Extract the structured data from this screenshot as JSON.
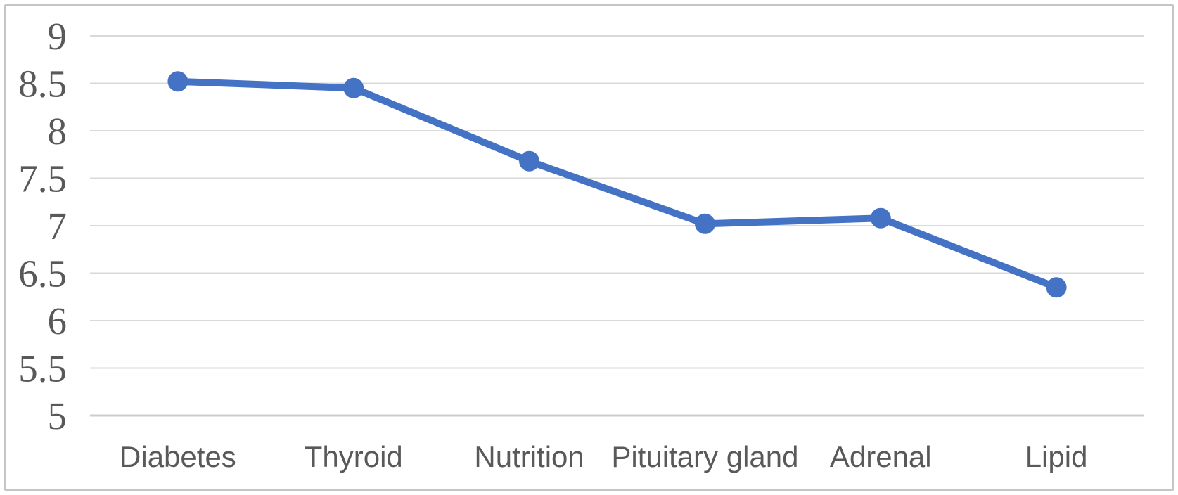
{
  "chart_data": {
    "type": "line",
    "categories": [
      "Diabetes",
      "Thyroid",
      "Nutrition",
      "Pituitary gland",
      "Adrenal",
      "Lipid"
    ],
    "values": [
      8.52,
      8.45,
      7.68,
      7.02,
      7.08,
      6.35
    ],
    "ylim": [
      5,
      9
    ],
    "ytick_step": 0.5,
    "ytick_labels": [
      "9",
      "8.5",
      "8",
      "7.5",
      "7",
      "6.5",
      "6",
      "5.5",
      "5"
    ],
    "grid": true,
    "legend": false,
    "marker": "circle",
    "colors": {
      "line": "#4472C4",
      "marker": "#4472C4",
      "gridline": "#D9D9D9",
      "axis_line": "#CCCCCC",
      "tick_text": "#595959",
      "border": "#C5C5C5",
      "background": "#FFFFFF"
    }
  }
}
